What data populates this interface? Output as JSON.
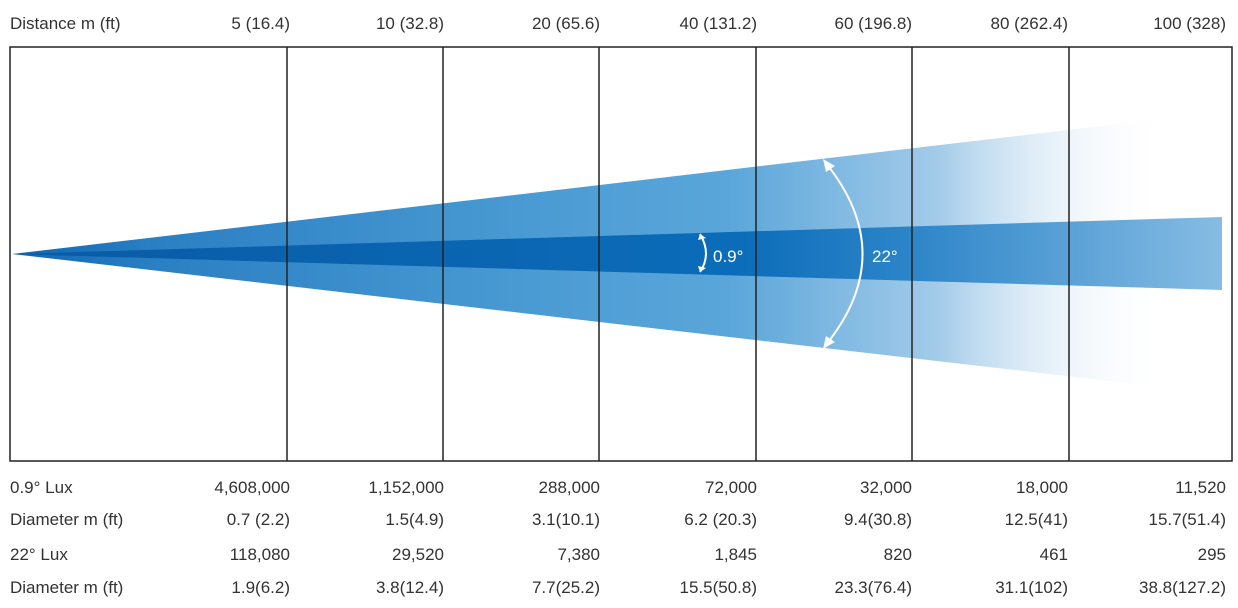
{
  "header": {
    "label": "Distance m (ft)",
    "distances": [
      "5 (16.4)",
      "10 (32.8)",
      "20 (65.6)",
      "40 (131.2)",
      "60 (196.8)",
      "80 (262.4)",
      "100 (328)"
    ]
  },
  "beams": {
    "narrow_angle": "0.9°",
    "wide_angle": "22°"
  },
  "rows": [
    {
      "label": "0.9° Lux",
      "values": [
        "4,608,000",
        "1,152,000",
        "288,000",
        "72,000",
        "32,000",
        "18,000",
        "11,520"
      ]
    },
    {
      "label": "Diameter m (ft)",
      "values": [
        "0.7 (2.2)",
        "1.5(4.9)",
        "3.1(10.1)",
        "6.2 (20.3)",
        "9.4(30.8)",
        "12.5(41)",
        "15.7(51.4)"
      ]
    },
    {
      "label": "22° Lux",
      "values": [
        "118,080",
        "29,520",
        "7,380",
        "1,845",
        "820",
        "461",
        "295"
      ]
    },
    {
      "label": "Diameter m (ft)",
      "values": [
        "1.9(6.2)",
        "3.8(12.4)",
        "7.7(25.2)",
        "15.5(50.8)",
        "23.3(76.4)",
        "31.1(102)",
        "38.8(127.2)"
      ]
    }
  ],
  "colors": {
    "wide_beam": "#4a98d2",
    "narrow_beam": "#0b69b7",
    "frame": "#222222",
    "arc": "#ffffff"
  }
}
